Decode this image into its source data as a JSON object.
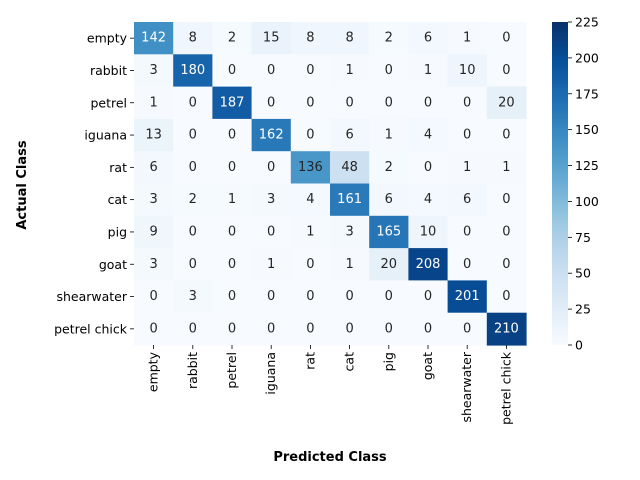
{
  "chart_data": {
    "type": "heatmap",
    "title": "",
    "xlabel": "Predicted Class",
    "ylabel": "Actual Class",
    "x_categories": [
      "empty",
      "rabbit",
      "petrel",
      "iguana",
      "rat",
      "cat",
      "pig",
      "goat",
      "shearwater",
      "petrel chick"
    ],
    "y_categories": [
      "empty",
      "rabbit",
      "petrel",
      "iguana",
      "rat",
      "cat",
      "pig",
      "goat",
      "shearwater",
      "petrel chick"
    ],
    "values": [
      [
        142,
        8,
        2,
        15,
        8,
        8,
        2,
        6,
        1,
        0
      ],
      [
        3,
        180,
        0,
        0,
        0,
        1,
        0,
        1,
        10,
        0
      ],
      [
        1,
        0,
        187,
        0,
        0,
        0,
        0,
        0,
        0,
        20
      ],
      [
        13,
        0,
        0,
        162,
        0,
        6,
        1,
        4,
        0,
        0
      ],
      [
        6,
        0,
        0,
        0,
        136,
        48,
        2,
        0,
        1,
        1
      ],
      [
        3,
        2,
        1,
        3,
        4,
        161,
        6,
        4,
        6,
        0
      ],
      [
        9,
        0,
        0,
        0,
        1,
        3,
        165,
        10,
        0,
        0
      ],
      [
        3,
        0,
        0,
        1,
        0,
        1,
        20,
        208,
        0,
        0
      ],
      [
        0,
        3,
        0,
        0,
        0,
        0,
        0,
        0,
        201,
        0
      ],
      [
        0,
        0,
        0,
        0,
        0,
        0,
        0,
        0,
        0,
        210
      ]
    ],
    "colorbar": {
      "min": 0,
      "max": 225,
      "ticks": [
        0,
        25,
        50,
        75,
        100,
        125,
        150,
        175,
        200,
        225
      ],
      "colormap": "Blues",
      "color_low": "#f7fbff",
      "color_high": "#08306b"
    }
  }
}
